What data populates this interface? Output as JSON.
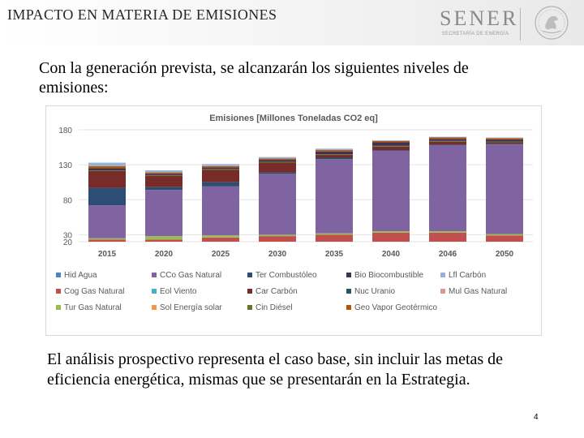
{
  "header": {
    "title": "IMPACTO EN MATERIA DE EMISIONES",
    "logo_text": "SENER",
    "logo_subtext": "SECRETARÍA DE ENERGÍA"
  },
  "intro_text": "Con la generación prevista, se alcanzarán los siguientes niveles de emisiones:",
  "outro_text": "El análisis prospectivo representa el caso base, sin incluir las metas de eficiencia energética, mismas que se presentarán en la Estrategia.",
  "page_number": "4",
  "chart_data": {
    "type": "bar",
    "stacked": true,
    "title": "Emisiones [Millones Toneladas CO2 eq]",
    "xlabel": "",
    "ylabel": "",
    "ylim": [
      20,
      180
    ],
    "yticks": [
      "180",
      "130",
      "80",
      "30",
      "20"
    ],
    "grid": true,
    "legend_position": "bottom",
    "categories": [
      "2015",
      "2020",
      "2025",
      "2030",
      "2035",
      "2040",
      "2046",
      "2050"
    ],
    "series": [
      {
        "name": "Hid Agua",
        "color": "#4e81bd",
        "values": [
          0,
          0,
          0,
          0,
          0,
          0,
          0,
          0
        ]
      },
      {
        "name": "Cog Gas Natural",
        "color": "#c0504d",
        "values": [
          3,
          3,
          6,
          8,
          10,
          13,
          13,
          9
        ]
      },
      {
        "name": "Tur Gas Natural",
        "color": "#9bbb59",
        "values": [
          2,
          5,
          3,
          2,
          2,
          2,
          2,
          2
        ]
      },
      {
        "name": "CCo Gas Natural",
        "color": "#8064a2",
        "values": [
          47,
          66,
          70,
          87,
          106,
          115,
          123,
          128
        ]
      },
      {
        "name": "Eol Viento",
        "color": "#4bacc6",
        "values": [
          0,
          0,
          0,
          0,
          0,
          0,
          0,
          0
        ]
      },
      {
        "name": "Sol Energía solar",
        "color": "#f79646",
        "values": [
          0,
          0,
          0,
          0,
          0,
          0,
          0,
          0
        ]
      },
      {
        "name": "Ter Combustóleo",
        "color": "#2c4d75",
        "values": [
          25,
          4,
          6,
          2,
          2,
          1,
          1,
          1
        ]
      },
      {
        "name": "Car Carbón",
        "color": "#772c2a",
        "values": [
          24,
          16,
          18,
          14,
          4,
          5,
          4,
          2
        ]
      },
      {
        "name": "Cin Diésel",
        "color": "#5f7530",
        "values": [
          1,
          1,
          1,
          1,
          1,
          1,
          1,
          1
        ]
      },
      {
        "name": "Bio Biocombustible",
        "color": "#403151",
        "values": [
          3,
          2,
          2,
          3,
          4,
          5,
          3,
          3
        ]
      },
      {
        "name": "Nuc Uranio",
        "color": "#215968",
        "values": [
          0,
          0,
          0,
          0,
          0,
          0,
          0,
          0
        ]
      },
      {
        "name": "Geo Vapor Geotérmico",
        "color": "#b65708",
        "values": [
          3,
          2,
          2,
          2,
          2,
          2,
          2,
          2
        ]
      },
      {
        "name": "Lfl Carbón",
        "color": "#95b3d7",
        "values": [
          5,
          3,
          3,
          2,
          2,
          1,
          1,
          1
        ]
      },
      {
        "name": "Mul Gas Natural",
        "color": "#d99694",
        "values": [
          0,
          0,
          0,
          0,
          0,
          0,
          0,
          0
        ]
      }
    ]
  }
}
